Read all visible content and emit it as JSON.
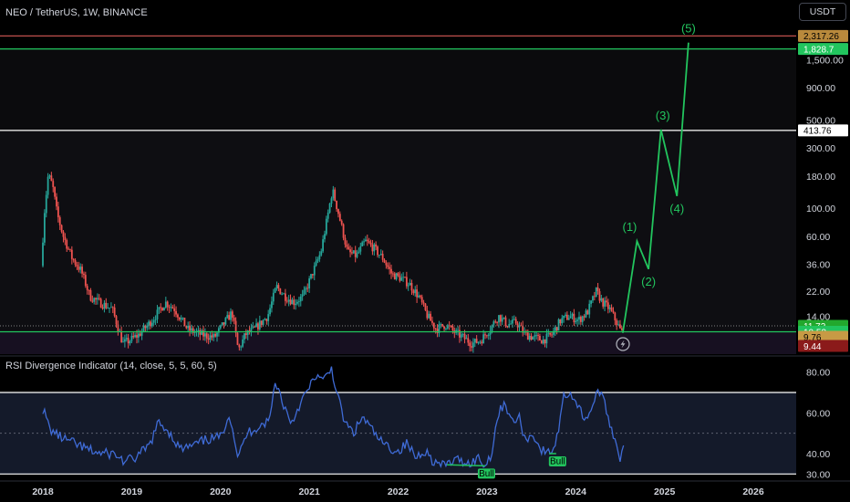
{
  "header": {
    "symbol_title": "NEO / TetherUS, 1W, BINANCE",
    "currency_button": "USDT"
  },
  "colors": {
    "background": "#000000",
    "candle_up": "#26a69a",
    "candle_down": "#ef5350",
    "wave": "#22c55e",
    "support_line": "#22c55e",
    "resistance_line": "#ffffff",
    "top_line": "#c0504d",
    "rsi_line": "#3f6bd6",
    "rsi_band": "#141a2a"
  },
  "chart_data": [
    {
      "type": "candlestick",
      "scale": "log",
      "ylim": [
        7,
        2800
      ],
      "x_ticks": [
        "2018",
        "2019",
        "2020",
        "2021",
        "2022",
        "2023",
        "2024",
        "2025",
        "2026"
      ],
      "y_ticks": [
        "1,500.00",
        "900.00",
        "500.00",
        "300.00",
        "180.00",
        "100.00",
        "60.00",
        "36.00",
        "22.00",
        "14.00"
      ],
      "price_path": [
        [
          2018.0,
          35
        ],
        [
          2018.04,
          100
        ],
        [
          2018.08,
          185
        ],
        [
          2018.13,
          150
        ],
        [
          2018.18,
          90
        ],
        [
          2018.25,
          60
        ],
        [
          2018.35,
          40
        ],
        [
          2018.45,
          32
        ],
        [
          2018.55,
          20
        ],
        [
          2018.65,
          18
        ],
        [
          2018.8,
          16
        ],
        [
          2018.92,
          8.5
        ],
        [
          2019.0,
          9
        ],
        [
          2019.1,
          10
        ],
        [
          2019.25,
          13
        ],
        [
          2019.4,
          18
        ],
        [
          2019.5,
          16
        ],
        [
          2019.65,
          11
        ],
        [
          2019.8,
          10
        ],
        [
          2019.95,
          9.5
        ],
        [
          2020.05,
          12
        ],
        [
          2020.15,
          15
        ],
        [
          2020.22,
          7.5
        ],
        [
          2020.3,
          10
        ],
        [
          2020.4,
          11
        ],
        [
          2020.55,
          14
        ],
        [
          2020.65,
          24
        ],
        [
          2020.75,
          20
        ],
        [
          2020.85,
          18
        ],
        [
          2020.95,
          20
        ],
        [
          2021.05,
          30
        ],
        [
          2021.15,
          45
        ],
        [
          2021.28,
          140
        ],
        [
          2021.35,
          90
        ],
        [
          2021.45,
          45
        ],
        [
          2021.55,
          42
        ],
        [
          2021.65,
          55
        ],
        [
          2021.75,
          48
        ],
        [
          2021.85,
          40
        ],
        [
          2021.95,
          30
        ],
        [
          2022.05,
          28
        ],
        [
          2022.15,
          25
        ],
        [
          2022.25,
          20
        ],
        [
          2022.35,
          14
        ],
        [
          2022.45,
          11
        ],
        [
          2022.55,
          12
        ],
        [
          2022.65,
          10.5
        ],
        [
          2022.75,
          9.5
        ],
        [
          2022.85,
          8.5
        ],
        [
          2022.95,
          9
        ],
        [
          2023.05,
          11
        ],
        [
          2023.15,
          14
        ],
        [
          2023.25,
          12
        ],
        [
          2023.35,
          12.5
        ],
        [
          2023.45,
          10
        ],
        [
          2023.55,
          9.5
        ],
        [
          2023.65,
          9
        ],
        [
          2023.75,
          10
        ],
        [
          2023.85,
          13
        ],
        [
          2023.95,
          14
        ],
        [
          2024.05,
          13
        ],
        [
          2024.15,
          15
        ],
        [
          2024.25,
          22
        ],
        [
          2024.32,
          18
        ],
        [
          2024.4,
          16
        ],
        [
          2024.48,
          12.5
        ],
        [
          2024.53,
          10.5
        ]
      ],
      "elliott_wave": [
        {
          "x": 2024.53,
          "y": 10.3,
          "label": ""
        },
        {
          "x": 2024.69,
          "y": 55,
          "label": "(1)"
        },
        {
          "x": 2024.82,
          "y": 33,
          "label": "(2)"
        },
        {
          "x": 2024.96,
          "y": 420,
          "label": "(3)"
        },
        {
          "x": 2025.14,
          "y": 125,
          "label": "(4)"
        },
        {
          "x": 2025.27,
          "y": 2050,
          "label": "(5)"
        }
      ],
      "horizontal_levels": [
        {
          "price": 2317.26,
          "label": "2,317.26",
          "color": "#c0504d",
          "badge_bg": "#b8893c",
          "badge_fg": "#000000"
        },
        {
          "price": 1828.7,
          "label": "1,828.7",
          "color": "#22c55e",
          "badge_bg": "#22c55e",
          "badge_fg": "#ffffff"
        },
        {
          "price": 413.76,
          "label": "413.76",
          "color": "#ffffff",
          "badge_bg": "#ffffff",
          "badge_fg": "#000000"
        },
        {
          "price": 11.72,
          "label": "11.72",
          "color": "#808080",
          "badge_bg": "#22a82d",
          "badge_fg": "#ffffff",
          "dotted": true
        },
        {
          "price": 10.53,
          "label": "10.53",
          "color": "#22c55e",
          "badge_bg": "#22c55e",
          "badge_fg": "#ffffff"
        },
        {
          "price": 9.76,
          "label": "9.76",
          "color": null,
          "badge_bg": "#c79a45",
          "badge_fg": "#000000"
        },
        {
          "price": 9.44,
          "label": "9.44",
          "color": null,
          "badge_bg": "#8b1a1a",
          "badge_fg": "#ffffff"
        }
      ]
    },
    {
      "type": "line",
      "title": "RSI Divergence Indicator (14, close, 5, 5, 60, 5)",
      "ylim": [
        27,
        87
      ],
      "y_ticks": [
        "80.00",
        "60.00",
        "40.00",
        "30.00"
      ],
      "band": [
        30,
        70
      ],
      "midline": 50,
      "rsi_path": [
        [
          2018.0,
          62
        ],
        [
          2018.08,
          52
        ],
        [
          2018.2,
          48
        ],
        [
          2018.35,
          45
        ],
        [
          2018.5,
          42
        ],
        [
          2018.65,
          40
        ],
        [
          2018.8,
          40
        ],
        [
          2018.92,
          36
        ],
        [
          2019.05,
          38
        ],
        [
          2019.2,
          44
        ],
        [
          2019.3,
          55
        ],
        [
          2019.4,
          52
        ],
        [
          2019.55,
          42
        ],
        [
          2019.7,
          44
        ],
        [
          2019.85,
          47
        ],
        [
          2020.0,
          48
        ],
        [
          2020.1,
          60
        ],
        [
          2020.2,
          38
        ],
        [
          2020.3,
          50
        ],
        [
          2020.45,
          54
        ],
        [
          2020.55,
          56
        ],
        [
          2020.62,
          76
        ],
        [
          2020.7,
          65
        ],
        [
          2020.8,
          55
        ],
        [
          2020.9,
          65
        ],
        [
          2021.0,
          72
        ],
        [
          2021.08,
          79
        ],
        [
          2021.15,
          75
        ],
        [
          2021.25,
          82
        ],
        [
          2021.32,
          68
        ],
        [
          2021.4,
          55
        ],
        [
          2021.5,
          50
        ],
        [
          2021.6,
          58
        ],
        [
          2021.7,
          52
        ],
        [
          2021.8,
          46
        ],
        [
          2021.9,
          43
        ],
        [
          2022.0,
          41
        ],
        [
          2022.1,
          45
        ],
        [
          2022.2,
          38
        ],
        [
          2022.3,
          42
        ],
        [
          2022.4,
          36
        ],
        [
          2022.5,
          34
        ],
        [
          2022.6,
          36
        ],
        [
          2022.7,
          37
        ],
        [
          2022.8,
          35
        ],
        [
          2022.9,
          38
        ],
        [
          2022.98,
          34
        ],
        [
          2023.05,
          40
        ],
        [
          2023.12,
          58
        ],
        [
          2023.2,
          66
        ],
        [
          2023.28,
          55
        ],
        [
          2023.36,
          58
        ],
        [
          2023.44,
          46
        ],
        [
          2023.52,
          50
        ],
        [
          2023.6,
          42
        ],
        [
          2023.7,
          40
        ],
        [
          2023.78,
          45
        ],
        [
          2023.86,
          68
        ],
        [
          2023.94,
          70
        ],
        [
          2024.02,
          64
        ],
        [
          2024.1,
          57
        ],
        [
          2024.18,
          62
        ],
        [
          2024.26,
          72
        ],
        [
          2024.34,
          62
        ],
        [
          2024.42,
          50
        ],
        [
          2024.5,
          38
        ],
        [
          2024.55,
          48
        ]
      ],
      "divergences": [
        {
          "x1": 2022.55,
          "y1": 34.5,
          "x2": 2022.98,
          "y2": 34,
          "label": "Bull"
        },
        {
          "x1": 2023.7,
          "y1": 40,
          "x2": 2023.78,
          "y2": 40,
          "label": "Bull"
        }
      ]
    }
  ]
}
